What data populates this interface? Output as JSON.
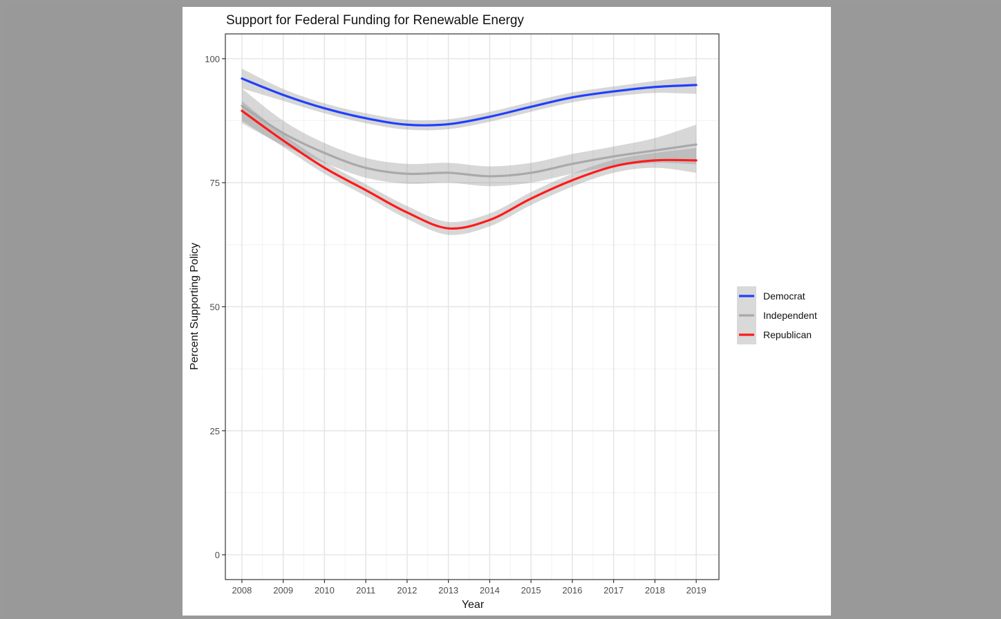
{
  "chart_data": {
    "type": "line",
    "title": "Support for Federal Funding for Renewable Energy",
    "xlabel": "Year",
    "ylabel": "Percent Supporting Policy",
    "xlim": [
      2007.6,
      2019.55
    ],
    "ylim": [
      -5,
      105
    ],
    "x_ticks": [
      2008,
      2009,
      2010,
      2011,
      2012,
      2013,
      2014,
      2015,
      2016,
      2017,
      2018,
      2019
    ],
    "y_ticks": [
      0,
      25,
      50,
      75,
      100
    ],
    "grid": true,
    "legend_position": "right",
    "x": [
      2008,
      2009,
      2010,
      2011,
      2012,
      2013,
      2014,
      2015,
      2016,
      2017,
      2018,
      2019
    ],
    "series": [
      {
        "name": "Democrat",
        "color": "#1f3fff",
        "values": [
          96.0,
          92.7,
          90.0,
          88.0,
          86.7,
          86.8,
          88.3,
          90.3,
          92.2,
          93.4,
          94.3,
          94.7
        ],
        "band": [
          2.0,
          1.2,
          1.0,
          1.0,
          1.0,
          1.0,
          1.0,
          1.0,
          1.0,
          1.0,
          1.2,
          1.8
        ]
      },
      {
        "name": "Independent",
        "color": "#a9a9a9",
        "values": [
          90.5,
          85.0,
          81.0,
          78.0,
          76.8,
          77.0,
          76.3,
          77.0,
          78.8,
          80.3,
          81.5,
          82.7
        ],
        "band": [
          3.5,
          2.5,
          2.0,
          2.0,
          2.0,
          2.0,
          2.0,
          2.0,
          2.0,
          2.0,
          2.5,
          4.0
        ]
      },
      {
        "name": "Republican",
        "color": "#ff1a1a",
        "values": [
          89.5,
          83.5,
          78.0,
          73.5,
          69.0,
          65.8,
          67.5,
          71.8,
          75.5,
          78.3,
          79.5,
          79.5
        ],
        "band": [
          2.0,
          1.3,
          1.2,
          1.2,
          1.3,
          1.3,
          1.3,
          1.3,
          1.3,
          1.3,
          1.5,
          2.5
        ]
      }
    ]
  }
}
